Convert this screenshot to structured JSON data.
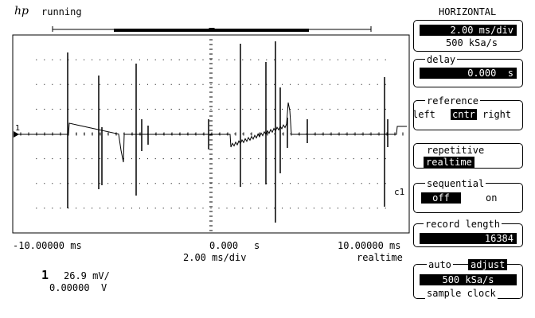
{
  "header": {
    "logo": "hp",
    "status": "running"
  },
  "waveform": {
    "channel_marker": "1",
    "trigger_label": "c1"
  },
  "scale": {
    "left": "-10.00000 ms",
    "center": "0.000",
    "center_unit": "s",
    "right": "10.00000 ms",
    "per_div": "2.00 ms/div",
    "mode": "realtime"
  },
  "channel": {
    "number": "1",
    "volts_div": "26.9 mV/",
    "offset": "0.00000  V"
  },
  "menu": {
    "title": "HORIZONTAL",
    "timebase": {
      "value": "2.00 ms/div",
      "sample_rate": "500 kSa/s"
    },
    "delay": {
      "label": "delay",
      "value": "0.000  s"
    },
    "reference": {
      "label": "reference",
      "left": "left",
      "center": "cntr",
      "right": "right",
      "selected": "cntr"
    },
    "repetitive": {
      "label": "repetitive",
      "value": "realtime"
    },
    "sequential": {
      "label": "sequential",
      "off": "off",
      "on": "on",
      "selected": "off"
    },
    "record_length": {
      "label": "record length",
      "value": "16384"
    },
    "sample_clock": {
      "auto": "auto",
      "adjust": "adjust",
      "selected": "adjust",
      "value": "500 kSa/s",
      "label": "sample clock"
    }
  }
}
